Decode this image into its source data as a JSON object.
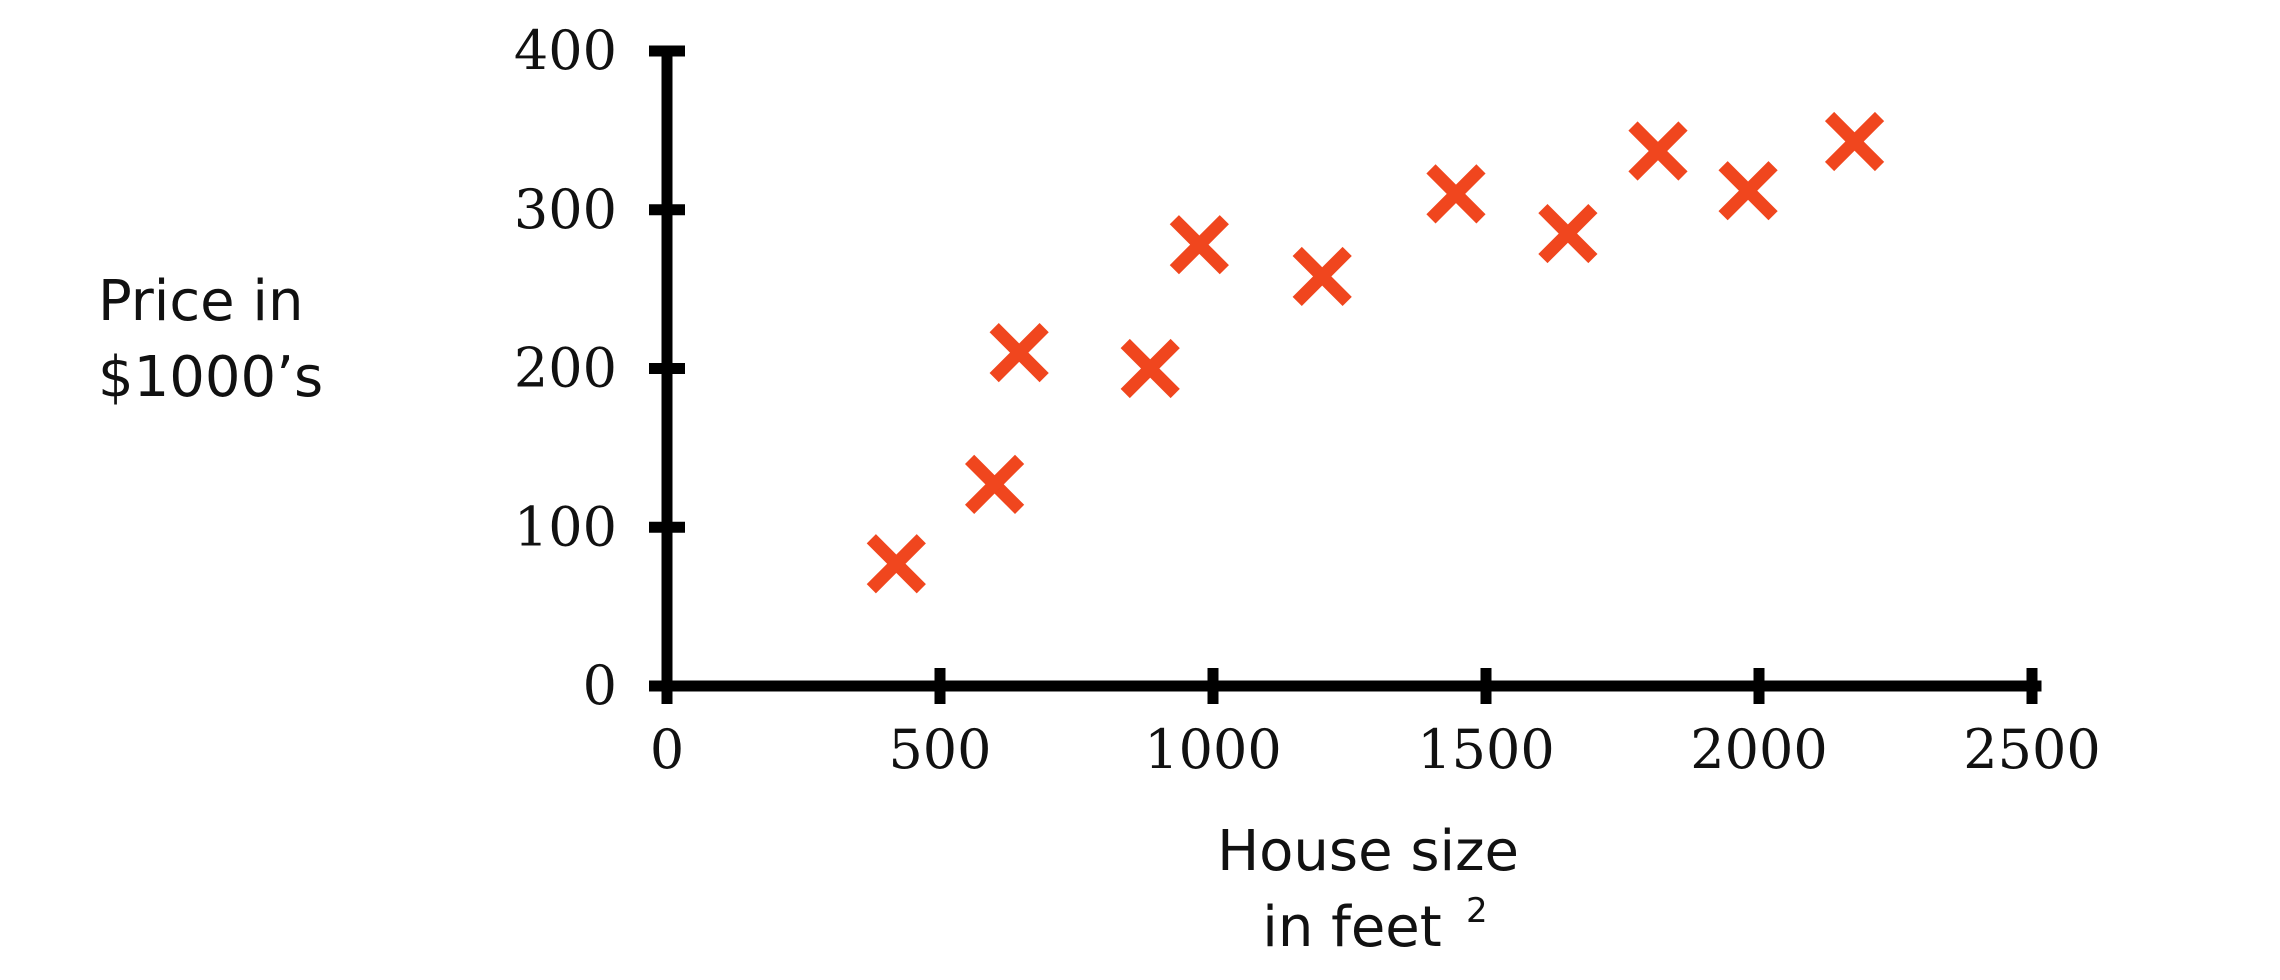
{
  "chart_data": {
    "type": "scatter",
    "title": "",
    "xlabel_lines": [
      "House size",
      "in feet"
    ],
    "xlabel_superscript": "2",
    "ylabel_lines": [
      "Price in",
      "$1000’s"
    ],
    "xlim": [
      0,
      2500
    ],
    "ylim": [
      0,
      400
    ],
    "xticks": [
      0,
      500,
      1000,
      1500,
      2000,
      2500
    ],
    "yticks": [
      0,
      100,
      200,
      300,
      400
    ],
    "grid": false,
    "marker": "x",
    "marker_color": "#f0461e",
    "axis_color": "#000000",
    "points": [
      {
        "x": 420,
        "y": 77
      },
      {
        "x": 600,
        "y": 127
      },
      {
        "x": 645,
        "y": 210
      },
      {
        "x": 885,
        "y": 200
      },
      {
        "x": 975,
        "y": 278
      },
      {
        "x": 1200,
        "y": 258
      },
      {
        "x": 1445,
        "y": 310
      },
      {
        "x": 1650,
        "y": 285
      },
      {
        "x": 1815,
        "y": 337
      },
      {
        "x": 1980,
        "y": 312
      },
      {
        "x": 2175,
        "y": 343
      }
    ]
  }
}
